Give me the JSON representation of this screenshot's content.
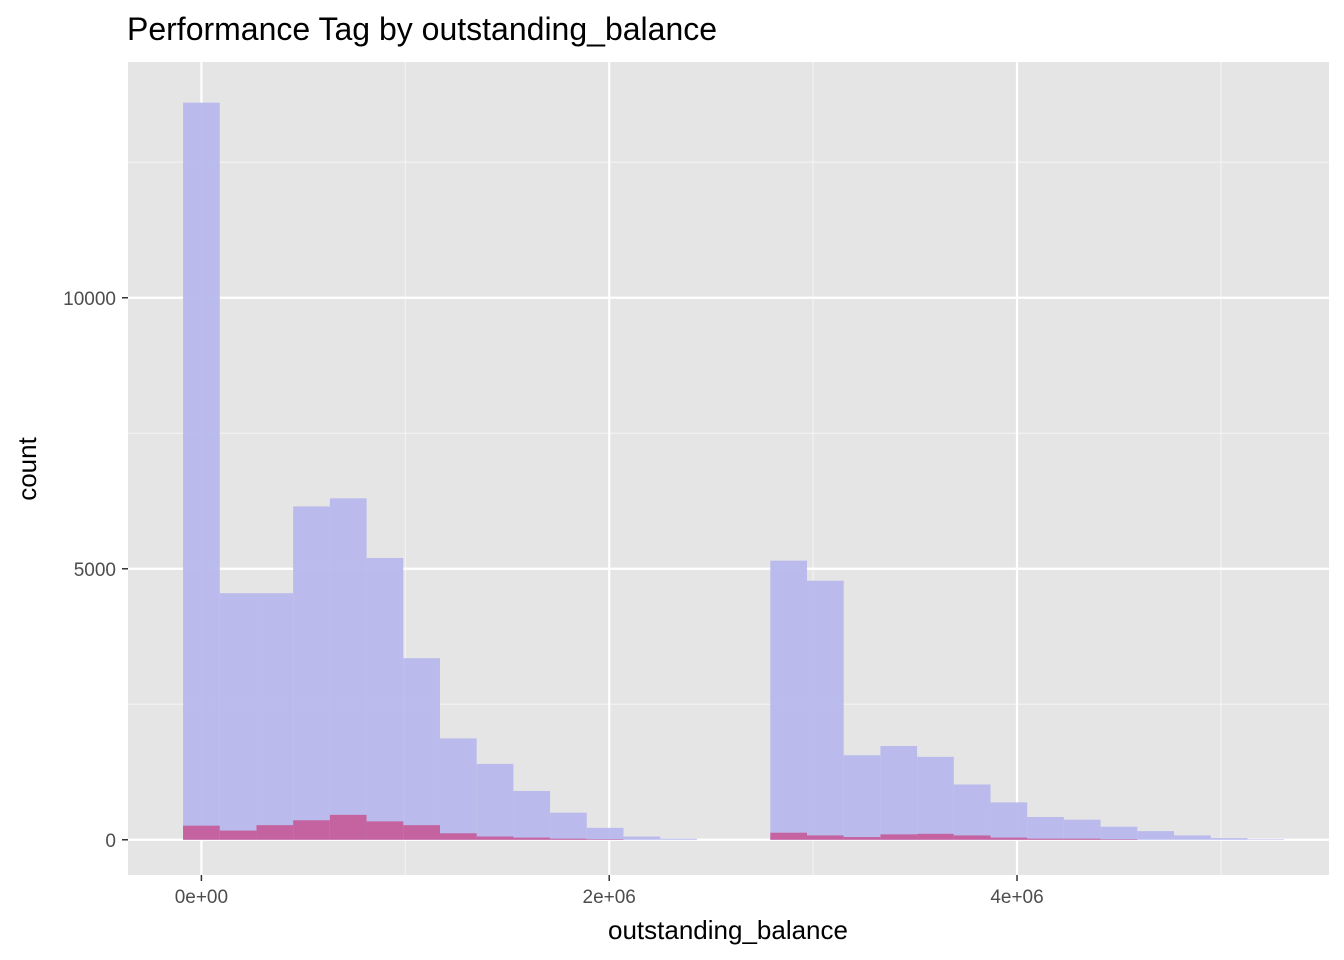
{
  "chart_data": {
    "type": "histogram",
    "title": "Performance Tag by outstanding_balance",
    "xlabel": "outstanding_balance",
    "ylabel": "count",
    "x_ticks": [
      {
        "value": 0,
        "label": "0e+00"
      },
      {
        "value": 2000000,
        "label": "2e+06"
      },
      {
        "value": 4000000,
        "label": "4e+06"
      }
    ],
    "y_ticks": [
      {
        "value": 0,
        "label": "0"
      },
      {
        "value": 5000,
        "label": "5000"
      },
      {
        "value": 10000,
        "label": "10000"
      }
    ],
    "xlim": [
      -360000,
      5530000
    ],
    "ylim": [
      -650,
      14350
    ],
    "grid": true,
    "legend": "none",
    "bin_width": 180000,
    "bin_starts": [
      -90000,
      90000,
      270000,
      450000,
      630000,
      810000,
      990000,
      1170000,
      1350000,
      1530000,
      1710000,
      1890000,
      2070000,
      2250000,
      2430000,
      2610000,
      2790000,
      2970000,
      3150000,
      3330000,
      3510000,
      3690000,
      3870000,
      4050000,
      4230000,
      4410000,
      4590000,
      4770000,
      4950000,
      5130000
    ],
    "series": [
      {
        "color": "#b7b8ec",
        "values": [
          13600,
          4550,
          4550,
          6150,
          6300,
          5200,
          3350,
          1870,
          1400,
          900,
          500,
          220,
          60,
          20,
          0,
          0,
          5150,
          4780,
          1560,
          1730,
          1530,
          1020,
          690,
          420,
          370,
          240,
          160,
          80,
          30,
          10
        ]
      },
      {
        "color": "#c45e9c",
        "values": [
          260,
          170,
          270,
          360,
          460,
          340,
          270,
          120,
          60,
          40,
          20,
          10,
          0,
          0,
          0,
          0,
          130,
          80,
          50,
          100,
          110,
          80,
          40,
          20,
          20,
          10,
          0,
          0,
          0,
          0
        ]
      }
    ]
  }
}
